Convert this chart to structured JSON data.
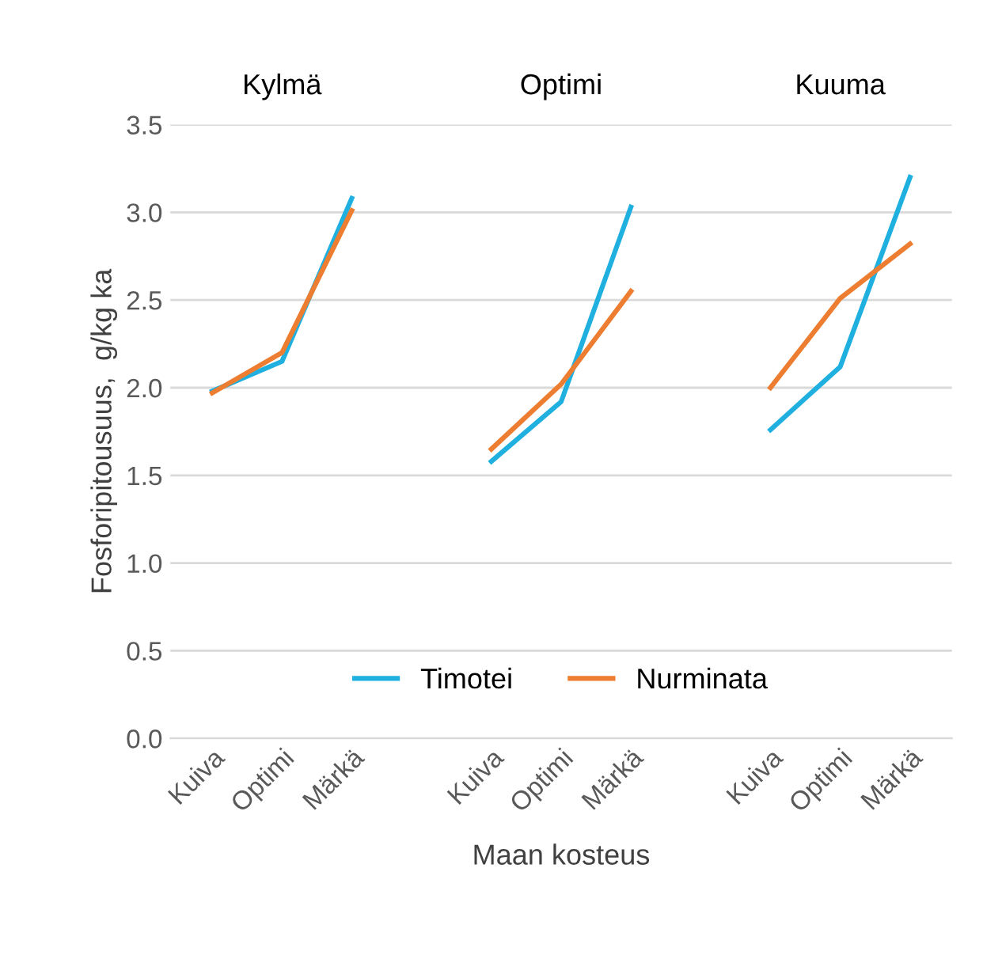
{
  "chart_data": {
    "type": "line",
    "ylabel": "Fosforipitousuus,  g/kg ka",
    "xlabel": "Maan kosteus",
    "categories": [
      "Kuiva",
      "Optimi",
      "Märkä",
      null,
      "Kuiva",
      "Optimi",
      "Märkä",
      null,
      "Kuiva",
      "Optimi",
      "Märkä"
    ],
    "series": [
      {
        "name": "Timotei",
        "color": "#1fb0e0",
        "values": [
          1.98,
          2.15,
          3.08,
          null,
          1.58,
          1.92,
          3.03,
          null,
          1.76,
          2.12,
          3.2
        ]
      },
      {
        "name": "Nurminata",
        "color": "#ed7d31",
        "values": [
          1.97,
          2.2,
          3.01,
          null,
          1.65,
          2.02,
          2.55,
          null,
          2.0,
          2.51,
          2.82
        ]
      }
    ],
    "annotations": [
      "Kylmä",
      "Optimi",
      "Kuuma"
    ],
    "ylim": [
      0,
      3.5
    ],
    "yticks": [
      {
        "value": 0,
        "label": "0.0"
      },
      0.5,
      {
        "value": 1,
        "label": "1.0"
      },
      1.5,
      {
        "value": 2,
        "label": "2.0"
      },
      2.5,
      {
        "value": 3,
        "label": "3.0"
      },
      3.5
    ],
    "grid": "y",
    "legend": "bottom",
    "marker": "none",
    "line_style": "solid"
  }
}
